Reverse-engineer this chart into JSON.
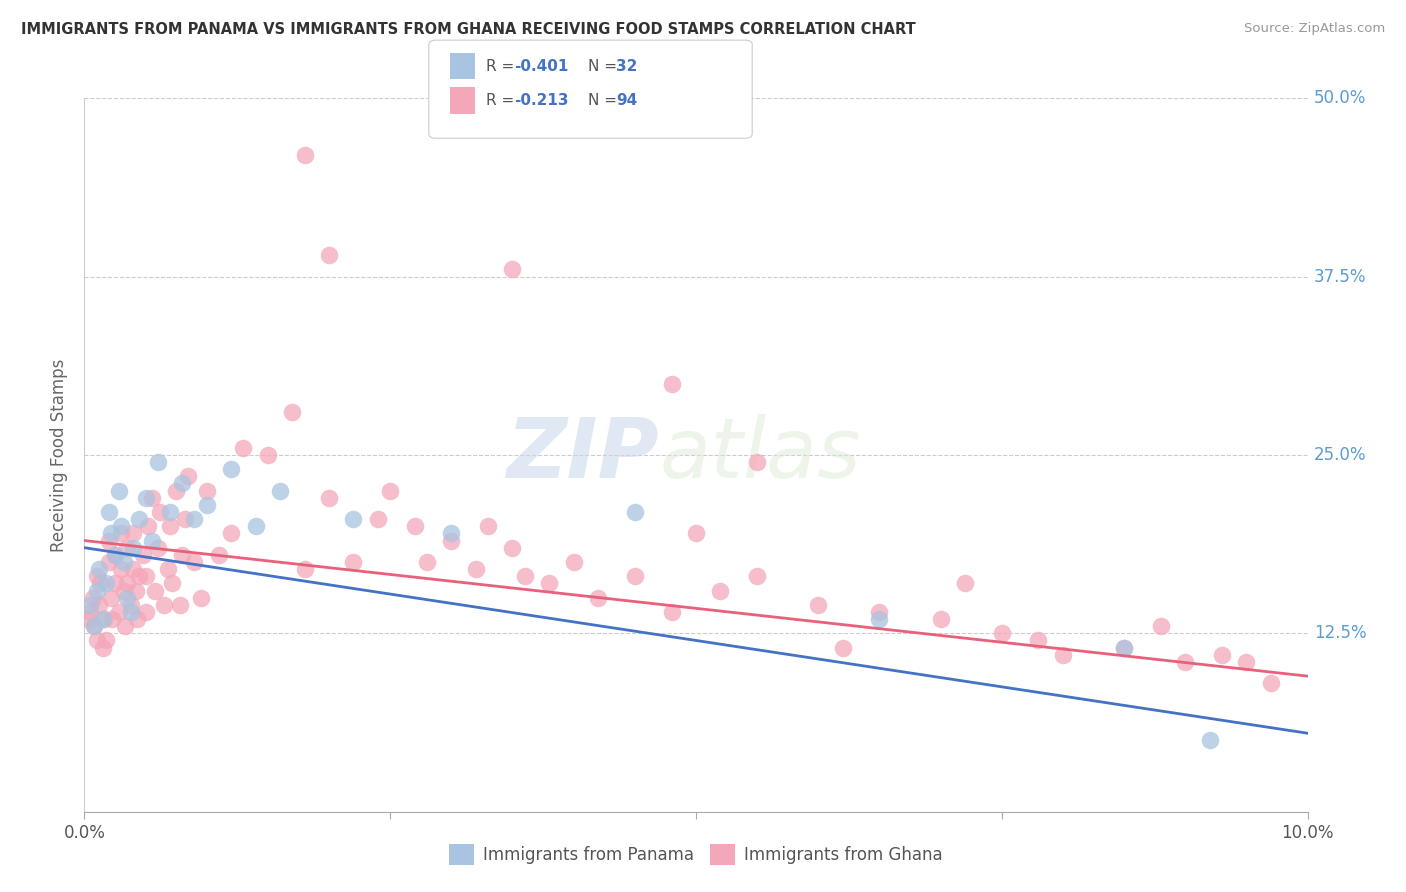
{
  "title": "IMMIGRANTS FROM PANAMA VS IMMIGRANTS FROM GHANA RECEIVING FOOD STAMPS CORRELATION CHART",
  "source": "Source: ZipAtlas.com",
  "ylabel": "Receiving Food Stamps",
  "xlim": [
    0.0,
    10.0
  ],
  "ylim": [
    0.0,
    50.0
  ],
  "yticks": [
    0.0,
    12.5,
    25.0,
    37.5,
    50.0
  ],
  "ytick_labels": [
    "",
    "12.5%",
    "25.0%",
    "37.5%",
    "50.0%"
  ],
  "xticks": [
    0.0,
    2.5,
    5.0,
    7.5,
    10.0
  ],
  "xtick_labels": [
    "0.0%",
    "",
    "",
    "",
    "10.0%"
  ],
  "panama_color": "#a8c4e0",
  "ghana_color": "#f4a7b9",
  "panama_line_color": "#4472c4",
  "ghana_line_color": "#e8607a",
  "watermark_zip": "ZIP",
  "watermark_atlas": "atlas",
  "legend_items": [
    {
      "color": "#a8c4e0",
      "r": "-0.401",
      "n": "32"
    },
    {
      "color": "#f4a7b9",
      "r": "-0.213",
      "n": "94"
    }
  ],
  "panama_scatter_x": [
    0.05,
    0.08,
    0.1,
    0.12,
    0.15,
    0.18,
    0.2,
    0.22,
    0.25,
    0.28,
    0.3,
    0.32,
    0.35,
    0.38,
    0.4,
    0.45,
    0.5,
    0.55,
    0.6,
    0.7,
    0.8,
    0.9,
    1.0,
    1.2,
    1.4,
    1.6,
    2.2,
    3.0,
    4.5,
    6.5,
    8.5,
    9.2
  ],
  "panama_scatter_y": [
    14.5,
    13.0,
    15.5,
    17.0,
    13.5,
    16.0,
    21.0,
    19.5,
    18.0,
    22.5,
    20.0,
    17.5,
    15.0,
    14.0,
    18.5,
    20.5,
    22.0,
    19.0,
    24.5,
    21.0,
    23.0,
    20.5,
    21.5,
    24.0,
    20.0,
    22.5,
    20.5,
    19.5,
    21.0,
    13.5,
    11.5,
    5.0
  ],
  "ghana_scatter_x": [
    0.03,
    0.05,
    0.07,
    0.08,
    0.1,
    0.1,
    0.12,
    0.13,
    0.15,
    0.16,
    0.18,
    0.2,
    0.2,
    0.22,
    0.23,
    0.25,
    0.25,
    0.28,
    0.3,
    0.3,
    0.32,
    0.33,
    0.35,
    0.35,
    0.38,
    0.4,
    0.4,
    0.42,
    0.43,
    0.45,
    0.48,
    0.5,
    0.5,
    0.52,
    0.55,
    0.58,
    0.6,
    0.62,
    0.65,
    0.68,
    0.7,
    0.72,
    0.75,
    0.78,
    0.8,
    0.82,
    0.85,
    0.9,
    0.95,
    1.0,
    1.1,
    1.2,
    1.3,
    1.5,
    1.7,
    1.8,
    2.0,
    2.2,
    2.4,
    2.5,
    2.7,
    2.8,
    3.0,
    3.2,
    3.3,
    3.5,
    3.6,
    3.8,
    4.0,
    4.2,
    4.5,
    4.8,
    5.0,
    5.2,
    5.5,
    6.0,
    6.2,
    6.5,
    7.0,
    7.2,
    7.5,
    7.8,
    8.0,
    8.5,
    8.8,
    9.0,
    9.3,
    9.5,
    9.7,
    1.8,
    2.0,
    3.5,
    4.8,
    5.5
  ],
  "ghana_scatter_y": [
    13.5,
    14.0,
    15.0,
    13.0,
    16.5,
    12.0,
    14.5,
    16.0,
    11.5,
    13.5,
    12.0,
    17.5,
    19.0,
    15.0,
    13.5,
    16.0,
    18.0,
    14.0,
    17.0,
    19.5,
    15.5,
    13.0,
    16.0,
    18.5,
    14.5,
    17.0,
    19.5,
    15.5,
    13.5,
    16.5,
    18.0,
    14.0,
    16.5,
    20.0,
    22.0,
    15.5,
    18.5,
    21.0,
    14.5,
    17.0,
    20.0,
    16.0,
    22.5,
    14.5,
    18.0,
    20.5,
    23.5,
    17.5,
    15.0,
    22.5,
    18.0,
    19.5,
    25.5,
    25.0,
    28.0,
    17.0,
    22.0,
    17.5,
    20.5,
    22.5,
    20.0,
    17.5,
    19.0,
    17.0,
    20.0,
    18.5,
    16.5,
    16.0,
    17.5,
    15.0,
    16.5,
    14.0,
    19.5,
    15.5,
    16.5,
    14.5,
    11.5,
    14.0,
    13.5,
    16.0,
    12.5,
    12.0,
    11.0,
    11.5,
    13.0,
    10.5,
    11.0,
    10.5,
    9.0,
    46.0,
    39.0,
    38.0,
    30.0,
    24.5
  ]
}
